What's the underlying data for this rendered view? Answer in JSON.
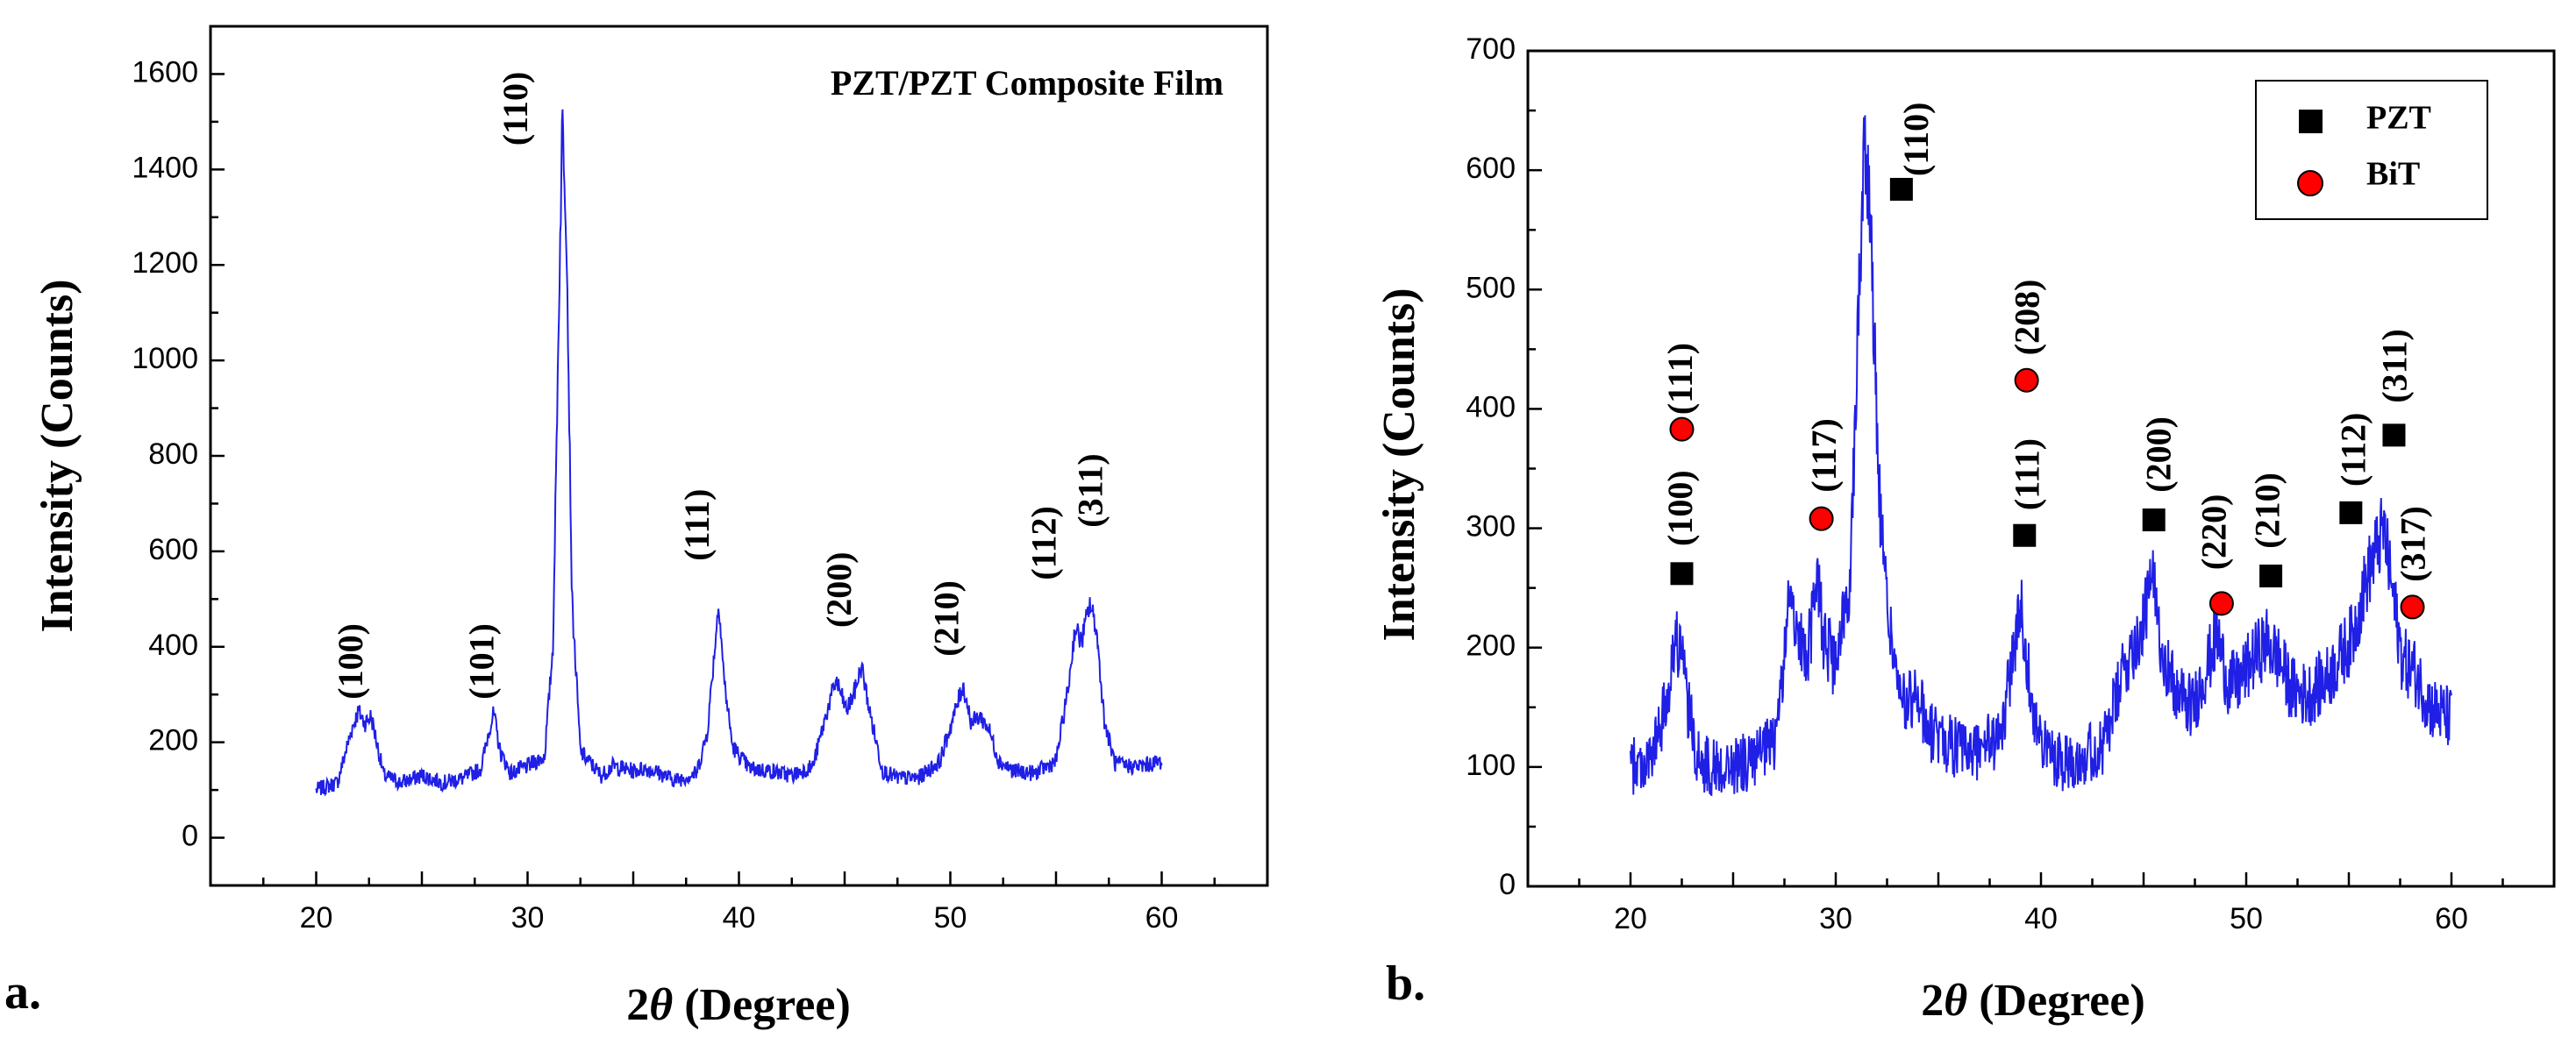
{
  "chart_data": [
    {
      "type": "line",
      "panel_label": "a.",
      "title": "PZT/PZT Composite Film",
      "xlabel": "2θ (Degree)",
      "xlabel_parts": {
        "prefix": "2",
        "symbol": "θ",
        "suffix": " (Degree)"
      },
      "ylabel": "Intensity (Counts)",
      "xlim": [
        15,
        65
      ],
      "ylim": [
        -100,
        1700
      ],
      "xticks": [
        20,
        30,
        40,
        50,
        60
      ],
      "yticks": [
        0,
        200,
        400,
        600,
        800,
        1000,
        1200,
        1400,
        1600
      ],
      "grid": false,
      "line_color": "#1f1fe6",
      "baseline": [
        [
          20,
          100
        ],
        [
          21,
          115
        ],
        [
          21.7,
          230
        ],
        [
          22,
          265
        ],
        [
          22.3,
          240
        ],
        [
          22.6,
          255
        ],
        [
          23.2,
          130
        ],
        [
          24,
          115
        ],
        [
          25,
          130
        ],
        [
          26,
          115
        ],
        [
          27,
          125
        ],
        [
          27.8,
          145
        ],
        [
          28.2,
          230
        ],
        [
          28.4,
          260
        ],
        [
          28.7,
          180
        ],
        [
          29.2,
          135
        ],
        [
          30,
          150
        ],
        [
          30.8,
          170
        ],
        [
          31.2,
          400
        ],
        [
          31.5,
          1150
        ],
        [
          31.65,
          1520
        ],
        [
          31.85,
          1250
        ],
        [
          32.1,
          500
        ],
        [
          32.5,
          180
        ],
        [
          33.5,
          130
        ],
        [
          34,
          150
        ],
        [
          35,
          140
        ],
        [
          35.5,
          145
        ],
        [
          36,
          140
        ],
        [
          37,
          120
        ],
        [
          38,
          135
        ],
        [
          38.5,
          220
        ],
        [
          38.9,
          420
        ],
        [
          39.05,
          495
        ],
        [
          39.3,
          330
        ],
        [
          39.7,
          190
        ],
        [
          40.5,
          145
        ],
        [
          41.5,
          140
        ],
        [
          42.5,
          130
        ],
        [
          43.5,
          150
        ],
        [
          44.2,
          270
        ],
        [
          44.6,
          330
        ],
        [
          45.1,
          265
        ],
        [
          45.5,
          310
        ],
        [
          45.8,
          360
        ],
        [
          46.2,
          260
        ],
        [
          46.8,
          140
        ],
        [
          47.5,
          125
        ],
        [
          48.5,
          125
        ],
        [
          49.5,
          160
        ],
        [
          50.2,
          260
        ],
        [
          50.6,
          320
        ],
        [
          51,
          240
        ],
        [
          51.4,
          255
        ],
        [
          51.8,
          230
        ],
        [
          52.3,
          160
        ],
        [
          53,
          140
        ],
        [
          54,
          135
        ],
        [
          55,
          160
        ],
        [
          55.6,
          320
        ],
        [
          55.9,
          440
        ],
        [
          56.2,
          410
        ],
        [
          56.6,
          490
        ],
        [
          56.9,
          440
        ],
        [
          57.3,
          240
        ],
        [
          57.8,
          155
        ],
        [
          58.5,
          150
        ],
        [
          59,
          150
        ],
        [
          60,
          160
        ]
      ],
      "peak_labels": [
        {
          "label": "(100)",
          "x": 21.8,
          "y": 290
        },
        {
          "label": "(101)",
          "x": 28.0,
          "y": 290
        },
        {
          "label": "(110)",
          "x": 29.6,
          "y": 1450
        },
        {
          "label": "(111)",
          "x": 38.2,
          "y": 580
        },
        {
          "label": "(200)",
          "x": 44.9,
          "y": 440
        },
        {
          "label": "(210)",
          "x": 50.0,
          "y": 380
        },
        {
          "label": "(112)",
          "x": 54.6,
          "y": 540
        },
        {
          "label": "(311)",
          "x": 56.8,
          "y": 650
        }
      ]
    },
    {
      "type": "line",
      "panel_label": "b.",
      "title": "",
      "xlabel": "2θ (Degree)",
      "xlabel_parts": {
        "prefix": "2",
        "symbol": "θ",
        "suffix": " (Degree)"
      },
      "ylabel": "Intensity (Counts)",
      "xlim": [
        15,
        65
      ],
      "ylim": [
        0,
        700
      ],
      "xticks": [
        20,
        30,
        40,
        50,
        60
      ],
      "yticks": [
        0,
        100,
        200,
        300,
        400,
        500,
        600,
        700
      ],
      "grid": false,
      "line_color": "#1f1fe6",
      "legend": {
        "position": "top-right",
        "entries": [
          {
            "name": "PZT",
            "marker": "square",
            "color": "#000000"
          },
          {
            "name": "BiT",
            "marker": "circle",
            "color": "#ff0000"
          }
        ]
      },
      "baseline": [
        [
          20,
          100
        ],
        [
          21,
          105
        ],
        [
          21.7,
          150
        ],
        [
          22.1,
          200
        ],
        [
          22.4,
          205
        ],
        [
          22.8,
          150
        ],
        [
          23.3,
          105
        ],
        [
          24,
          100
        ],
        [
          25,
          100
        ],
        [
          26,
          105
        ],
        [
          27,
          120
        ],
        [
          27.5,
          190
        ],
        [
          27.8,
          255
        ],
        [
          28.1,
          215
        ],
        [
          28.5,
          190
        ],
        [
          28.8,
          210
        ],
        [
          29.1,
          270
        ],
        [
          29.4,
          210
        ],
        [
          30,
          180
        ],
        [
          30.7,
          260
        ],
        [
          31.1,
          480
        ],
        [
          31.4,
          630
        ],
        [
          31.7,
          560
        ],
        [
          32.1,
          330
        ],
        [
          32.6,
          220
        ],
        [
          33.2,
          150
        ],
        [
          34,
          160
        ],
        [
          34.5,
          130
        ],
        [
          35.5,
          120
        ],
        [
          36.5,
          110
        ],
        [
          37.3,
          120
        ],
        [
          38,
          120
        ],
        [
          38.6,
          190
        ],
        [
          39.0,
          235
        ],
        [
          39.4,
          180
        ],
        [
          39.9,
          120
        ],
        [
          41,
          105
        ],
        [
          42,
          110
        ],
        [
          43,
          115
        ],
        [
          44.2,
          190
        ],
        [
          45.0,
          220
        ],
        [
          45.4,
          260
        ],
        [
          45.9,
          200
        ],
        [
          46.6,
          160
        ],
        [
          47.4,
          150
        ],
        [
          48.2,
          190
        ],
        [
          48.6,
          210
        ],
        [
          49.1,
          170
        ],
        [
          49.6,
          170
        ],
        [
          50.3,
          190
        ],
        [
          51.0,
          205
        ],
        [
          51.6,
          190
        ],
        [
          52.2,
          165
        ],
        [
          53,
          160
        ],
        [
          54,
          175
        ],
        [
          55.2,
          210
        ],
        [
          55.9,
          260
        ],
        [
          56.3,
          280
        ],
        [
          56.7,
          300
        ],
        [
          57.1,
          250
        ],
        [
          57.6,
          190
        ],
        [
          58.2,
          180
        ],
        [
          59,
          150
        ],
        [
          60,
          140
        ]
      ],
      "peak_labels": [
        {
          "label": "(100)",
          "x": 22.6,
          "y": 285
        },
        {
          "label": "(111)",
          "x": 22.6,
          "y": 395
        },
        {
          "label": "(117)",
          "x": 29.6,
          "y": 330
        },
        {
          "label": "(110)",
          "x": 34.1,
          "y": 595
        },
        {
          "label": "(111)",
          "x": 39.5,
          "y": 315
        },
        {
          "label": "(208)",
          "x": 39.5,
          "y": 445
        },
        {
          "label": "(200)",
          "x": 45.9,
          "y": 330
        },
        {
          "label": "(220)",
          "x": 48.6,
          "y": 265
        },
        {
          "label": "(210)",
          "x": 51.2,
          "y": 283
        },
        {
          "label": "(112)",
          "x": 55.4,
          "y": 335
        },
        {
          "label": "(311)",
          "x": 57.4,
          "y": 405
        },
        {
          "label": "(317)",
          "x": 58.3,
          "y": 255
        }
      ],
      "markers": [
        {
          "phase": "PZT",
          "shape": "square",
          "x": 22.5,
          "y": 262
        },
        {
          "phase": "BiT",
          "shape": "circle",
          "x": 22.5,
          "y": 383
        },
        {
          "phase": "BiT",
          "shape": "circle",
          "x": 29.3,
          "y": 308
        },
        {
          "phase": "PZT",
          "shape": "square",
          "x": 33.2,
          "y": 584
        },
        {
          "phase": "PZT",
          "shape": "square",
          "x": 39.2,
          "y": 294
        },
        {
          "phase": "BiT",
          "shape": "circle",
          "x": 39.3,
          "y": 424
        },
        {
          "phase": "PZT",
          "shape": "square",
          "x": 45.5,
          "y": 307
        },
        {
          "phase": "BiT",
          "shape": "circle",
          "x": 48.8,
          "y": 237
        },
        {
          "phase": "PZT",
          "shape": "square",
          "x": 51.2,
          "y": 260
        },
        {
          "phase": "PZT",
          "shape": "square",
          "x": 55.1,
          "y": 313
        },
        {
          "phase": "PZT",
          "shape": "square",
          "x": 57.2,
          "y": 378
        },
        {
          "phase": "BiT",
          "shape": "circle",
          "x": 58.1,
          "y": 234
        }
      ]
    }
  ]
}
